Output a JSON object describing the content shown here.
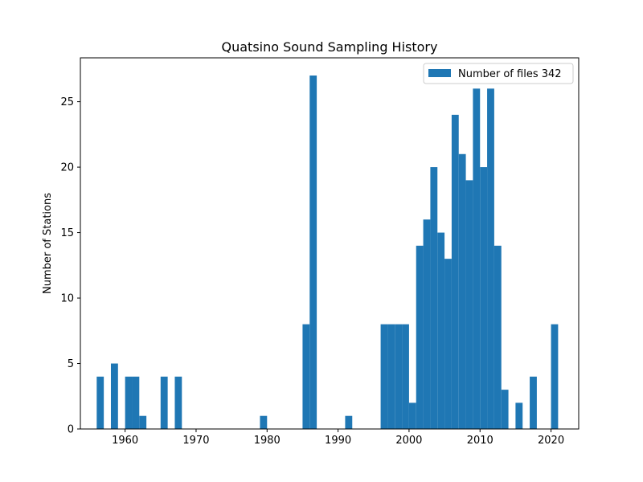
{
  "chart_data": {
    "type": "bar",
    "title": "Quatsino Sound Sampling History",
    "xlabel": "",
    "ylabel": "Number of Stations",
    "xlim": [
      1953.7,
      2023.9
    ],
    "ylim": [
      0,
      28.35
    ],
    "x_ticks": [
      1960,
      1970,
      1980,
      1990,
      2000,
      2010,
      2020
    ],
    "y_ticks": [
      0,
      5,
      10,
      15,
      20,
      25
    ],
    "bin_width": 1.0,
    "legend": {
      "label": "Number of files 342",
      "position": "upper right"
    },
    "color": "#1f77b4",
    "bins": [
      {
        "x": 1956.5,
        "value": 4
      },
      {
        "x": 1958.5,
        "value": 5
      },
      {
        "x": 1960.5,
        "value": 4
      },
      {
        "x": 1961.5,
        "value": 4
      },
      {
        "x": 1962.5,
        "value": 1
      },
      {
        "x": 1965.5,
        "value": 4
      },
      {
        "x": 1967.5,
        "value": 4
      },
      {
        "x": 1979.5,
        "value": 1
      },
      {
        "x": 1985.5,
        "value": 8
      },
      {
        "x": 1986.5,
        "value": 27
      },
      {
        "x": 1991.5,
        "value": 1
      },
      {
        "x": 1996.5,
        "value": 8
      },
      {
        "x": 1997.5,
        "value": 8
      },
      {
        "x": 1998.5,
        "value": 8
      },
      {
        "x": 1999.5,
        "value": 8
      },
      {
        "x": 2000.5,
        "value": 2
      },
      {
        "x": 2001.5,
        "value": 14
      },
      {
        "x": 2002.5,
        "value": 16
      },
      {
        "x": 2003.5,
        "value": 20
      },
      {
        "x": 2004.5,
        "value": 15
      },
      {
        "x": 2005.5,
        "value": 13
      },
      {
        "x": 2006.5,
        "value": 24
      },
      {
        "x": 2007.5,
        "value": 21
      },
      {
        "x": 2008.5,
        "value": 19
      },
      {
        "x": 2009.5,
        "value": 26
      },
      {
        "x": 2010.5,
        "value": 20
      },
      {
        "x": 2011.5,
        "value": 26
      },
      {
        "x": 2012.5,
        "value": 14
      },
      {
        "x": 2013.5,
        "value": 3
      },
      {
        "x": 2015.5,
        "value": 2
      },
      {
        "x": 2017.5,
        "value": 4
      },
      {
        "x": 2020.5,
        "value": 8
      }
    ]
  }
}
